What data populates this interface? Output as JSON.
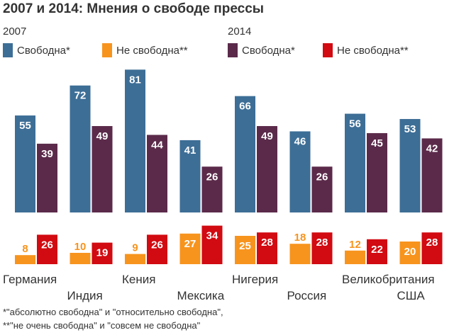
{
  "title": "2007 и 2014: Мнения о свободе прессы",
  "years": {
    "left": "2007",
    "right": "2014"
  },
  "legend": [
    {
      "label": "Свободна*",
      "color": "#3d6e96"
    },
    {
      "label": "Не свободна**",
      "color": "#f7941e"
    },
    {
      "label": "Свободна*",
      "color": "#5b2a4a"
    },
    {
      "label": "Не свободна**",
      "color": "#d20a11"
    }
  ],
  "footnotes": [
    "*\"абсолютно свободна\" и \"относительно свободна\",",
    "**\"не очень свободна\" и \"совсем не свободна\""
  ],
  "chart_data": {
    "type": "bar",
    "title": "2007 и 2014: Мнения о свободе прессы",
    "categories": [
      "Германия",
      "Индия",
      "Кения",
      "Мексика",
      "Нигерия",
      "Россия",
      "Великобритания",
      "США"
    ],
    "series": [
      {
        "name": "2007 Свободна*",
        "panel": "free",
        "color": "#3d6e96",
        "values": [
          55,
          72,
          81,
          41,
          66,
          46,
          56,
          53
        ]
      },
      {
        "name": "2014 Свободна*",
        "panel": "free",
        "color": "#5b2a4a",
        "values": [
          39,
          49,
          44,
          26,
          49,
          26,
          45,
          42
        ]
      },
      {
        "name": "2007 Не свободна**",
        "panel": "notfree",
        "color": "#f7941e",
        "values": [
          8,
          10,
          9,
          27,
          25,
          18,
          12,
          20
        ]
      },
      {
        "name": "2014 Не свободна**",
        "panel": "notfree",
        "color": "#d20a11",
        "values": [
          26,
          19,
          26,
          34,
          28,
          28,
          22,
          28
        ]
      }
    ],
    "xlabel": "",
    "ylabel": "",
    "ylim": [
      0,
      100
    ]
  }
}
